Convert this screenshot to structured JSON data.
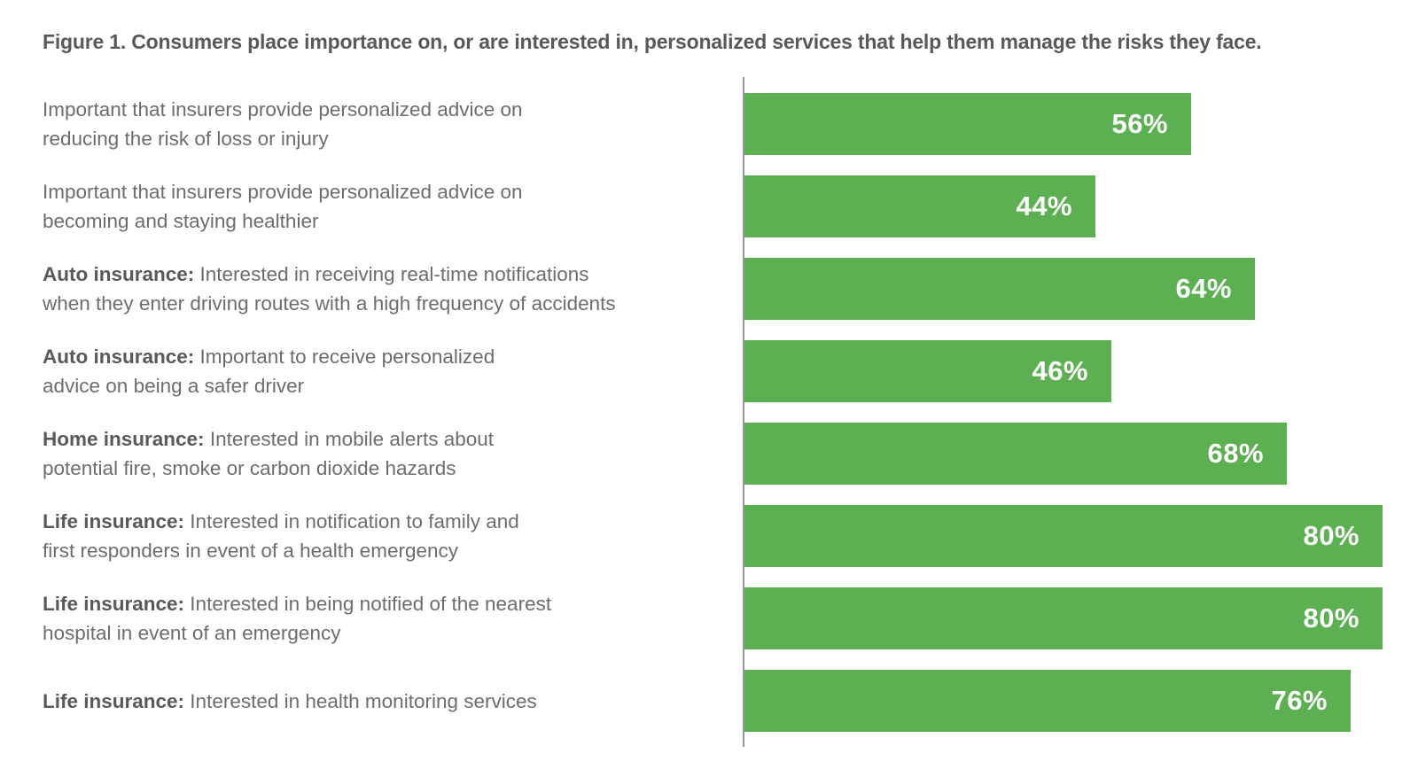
{
  "title": "Figure 1. Consumers place importance on, or are interested in, personalized services that help them manage the risks they face.",
  "colors": {
    "bar": "#5cb052",
    "title_text": "#58595c",
    "label_text": "#6c6d70",
    "axis_line": "#939598",
    "value_text": "#ffffff"
  },
  "chart_data": {
    "type": "bar",
    "orientation": "horizontal",
    "title": "Figure 1. Consumers place importance on, or are interested in, personalized services that help them manage the risks they face.",
    "xlabel": "",
    "ylabel": "",
    "value_unit": "%",
    "xlim": [
      0,
      80
    ],
    "grid": false,
    "legend": false,
    "categories": [
      "Important that insurers provide personalized advice on reducing the risk of loss or injury",
      "Important that insurers provide personalized advice on becoming and staying healthier",
      "Auto insurance: Interested in receiving real-time notifications when they enter driving routes with a high frequency of accidents",
      "Auto insurance: Important to receive personalized advice on being a safer driver",
      "Home insurance: Interested in mobile alerts about potential fire, smoke or carbon dioxide hazards",
      "Life insurance: Interested in notification to family and first responders in event of a health emergency",
      "Life insurance: Interested in being notified of the nearest hospital in event of an emergency",
      "Life insurance: Interested in health monitoring services"
    ],
    "values": [
      56,
      44,
      64,
      46,
      68,
      80,
      80,
      76
    ],
    "rows": [
      {
        "prefix": "",
        "label": "Important that insurers provide personalized advice on\nreducing the risk of loss or injury",
        "value": 56,
        "value_label": "56%"
      },
      {
        "prefix": "",
        "label": "Important that insurers provide personalized advice on\nbecoming and staying healthier",
        "value": 44,
        "value_label": "44%"
      },
      {
        "prefix": "Auto insurance:",
        "label": " Interested in receiving real-time notifications\nwhen they enter driving routes with a high frequency of accidents",
        "value": 64,
        "value_label": "64%"
      },
      {
        "prefix": "Auto insurance:",
        "label": " Important to receive personalized\nadvice on being a safer driver",
        "value": 46,
        "value_label": "46%"
      },
      {
        "prefix": "Home insurance:",
        "label": " Interested in mobile alerts about\npotential fire, smoke or carbon dioxide hazards",
        "value": 68,
        "value_label": "68%"
      },
      {
        "prefix": "Life insurance:",
        "label": " Interested in notification to family and\nfirst responders in event of a health emergency",
        "value": 80,
        "value_label": "80%"
      },
      {
        "prefix": "Life insurance:",
        "label": " Interested in being notified of the nearest\nhospital in event of an emergency",
        "value": 80,
        "value_label": "80%"
      },
      {
        "prefix": "Life insurance:",
        "label": " Interested in health monitoring services",
        "value": 76,
        "value_label": "76%"
      }
    ]
  }
}
